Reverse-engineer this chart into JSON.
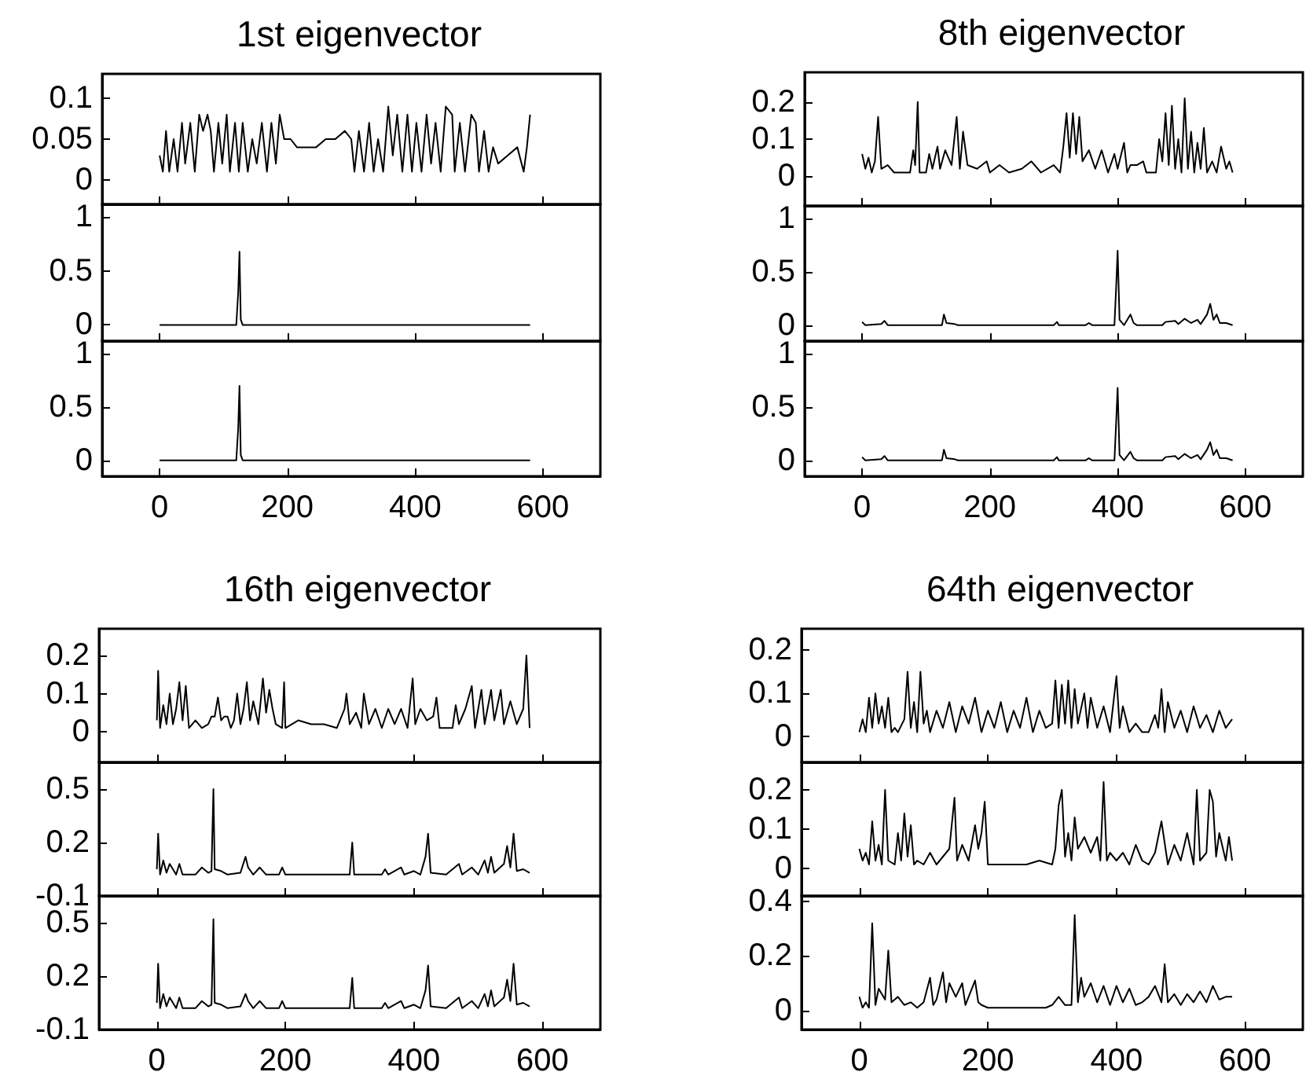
{
  "chart_data": [
    {
      "type": "line",
      "title": "1st eigenvector",
      "color": "#000000",
      "tick_labels": "y",
      "xlim": [
        -90,
        690
      ],
      "xticks": [
        0,
        200,
        400,
        600
      ],
      "ylim": [
        -0.03,
        0.13
      ],
      "yticks": [
        0,
        0.05,
        0.1
      ],
      "x": [
        0,
        5,
        10,
        15,
        22,
        28,
        35,
        40,
        48,
        55,
        62,
        68,
        75,
        80,
        85,
        92,
        98,
        105,
        110,
        118,
        124,
        130,
        138,
        145,
        152,
        160,
        168,
        175,
        182,
        188,
        195,
        205,
        215,
        230,
        245,
        260,
        275,
        290,
        300,
        305,
        312,
        320,
        328,
        335,
        342,
        350,
        358,
        365,
        372,
        380,
        388,
        395,
        402,
        410,
        418,
        425,
        432,
        440,
        448,
        458,
        462,
        470,
        478,
        488,
        495,
        500,
        508,
        515,
        522,
        530,
        545,
        560,
        570,
        575,
        580
      ],
      "values": [
        0.03,
        0.01,
        0.06,
        0.01,
        0.05,
        0.01,
        0.07,
        0.02,
        0.07,
        0.01,
        0.08,
        0.06,
        0.08,
        0.06,
        0.01,
        0.07,
        0.02,
        0.08,
        0.01,
        0.07,
        0.01,
        0.07,
        0.01,
        0.05,
        0.02,
        0.07,
        0.01,
        0.07,
        0.02,
        0.08,
        0.05,
        0.05,
        0.04,
        0.04,
        0.04,
        0.05,
        0.05,
        0.06,
        0.05,
        0.01,
        0.06,
        0.01,
        0.07,
        0.01,
        0.05,
        0.01,
        0.09,
        0.03,
        0.08,
        0.01,
        0.08,
        0.01,
        0.07,
        0.01,
        0.08,
        0.02,
        0.07,
        0.01,
        0.09,
        0.08,
        0.01,
        0.07,
        0.01,
        0.08,
        0.07,
        0.01,
        0.06,
        0.01,
        0.04,
        0.02,
        0.03,
        0.04,
        0.01,
        0.04,
        0.08
      ]
    },
    {
      "type": "line",
      "color": "#000000",
      "tick_labels": "y",
      "xlim": [
        -90,
        690
      ],
      "xticks": [
        0,
        200,
        400,
        600
      ],
      "ylim": [
        -0.15,
        1.12
      ],
      "yticks": [
        0,
        0.5,
        1
      ],
      "x": [
        0,
        120,
        123,
        125,
        127,
        130,
        580
      ],
      "values": [
        0,
        0,
        0.3,
        0.68,
        0.05,
        0,
        0
      ]
    },
    {
      "type": "line",
      "color": "#000000",
      "xlim": [
        -90,
        690
      ],
      "xticks": [
        0,
        200,
        400,
        600
      ],
      "ylim": [
        -0.15,
        1.12
      ],
      "yticks": [
        0,
        0.5,
        1
      ],
      "x": [
        0,
        120,
        123,
        125,
        127,
        130,
        580
      ],
      "values": [
        0,
        0,
        0.3,
        0.7,
        0.05,
        0,
        0
      ]
    },
    {
      "type": "line",
      "title": "8th eigenvector",
      "color": "#000000",
      "tick_labels": "y",
      "xlim": [
        -90,
        690
      ],
      "xticks": [
        0,
        200,
        400,
        600
      ],
      "ylim": [
        -0.08,
        0.28
      ],
      "yticks": [
        0,
        0.1,
        0.2
      ],
      "x": [
        0,
        5,
        10,
        15,
        20,
        25,
        30,
        40,
        50,
        65,
        75,
        80,
        83,
        87,
        90,
        100,
        105,
        110,
        118,
        122,
        130,
        140,
        148,
        153,
        158,
        165,
        180,
        195,
        200,
        215,
        230,
        250,
        265,
        280,
        300,
        310,
        315,
        320,
        325,
        330,
        335,
        340,
        345,
        355,
        365,
        375,
        385,
        395,
        400,
        410,
        415,
        420,
        430,
        440,
        445,
        460,
        465,
        470,
        475,
        480,
        485,
        490,
        495,
        500,
        505,
        510,
        515,
        520,
        525,
        530,
        535,
        540,
        548,
        555,
        562,
        570,
        575,
        580
      ],
      "values": [
        0.06,
        0.02,
        0.05,
        0.01,
        0.04,
        0.16,
        0.02,
        0.03,
        0.01,
        0.01,
        0.01,
        0.07,
        0.03,
        0.2,
        0.01,
        0.01,
        0.06,
        0.02,
        0.08,
        0.02,
        0.07,
        0.03,
        0.16,
        0.02,
        0.12,
        0.03,
        0.02,
        0.04,
        0.01,
        0.03,
        0.01,
        0.02,
        0.04,
        0.01,
        0.03,
        0.01,
        0.08,
        0.17,
        0.05,
        0.17,
        0.06,
        0.16,
        0.04,
        0.07,
        0.02,
        0.07,
        0.01,
        0.06,
        0.02,
        0.09,
        0.01,
        0.03,
        0.03,
        0.04,
        0.01,
        0.01,
        0.1,
        0.04,
        0.17,
        0.03,
        0.19,
        0.02,
        0.1,
        0.01,
        0.21,
        0.02,
        0.12,
        0.01,
        0.09,
        0.02,
        0.13,
        0.01,
        0.04,
        0.01,
        0.08,
        0.02,
        0.04,
        0.01
      ]
    },
    {
      "type": "line",
      "color": "#000000",
      "tick_labels": "y",
      "xlim": [
        -90,
        690
      ],
      "xticks": [
        0,
        200,
        400,
        600
      ],
      "ylim": [
        -0.15,
        1.12
      ],
      "yticks": [
        0,
        0.5,
        1
      ],
      "x": [
        0,
        5,
        30,
        35,
        40,
        125,
        128,
        132,
        145,
        150,
        300,
        305,
        308,
        350,
        355,
        360,
        395,
        398,
        400,
        403,
        410,
        420,
        425,
        430,
        470,
        475,
        490,
        495,
        505,
        515,
        525,
        530,
        540,
        545,
        550,
        555,
        560,
        570,
        580
      ],
      "values": [
        0.03,
        0,
        0.01,
        0.04,
        0,
        0,
        0.1,
        0.02,
        0.01,
        0,
        0,
        0.03,
        0,
        0,
        0.02,
        0,
        0,
        0.4,
        0.7,
        0.05,
        0,
        0.1,
        0.02,
        0,
        0,
        0.03,
        0.04,
        0.01,
        0.06,
        0.02,
        0.05,
        0.01,
        0.1,
        0.2,
        0.05,
        0.1,
        0.02,
        0.02,
        0
      ]
    },
    {
      "type": "line",
      "color": "#000000",
      "xlim": [
        -90,
        690
      ],
      "xticks": [
        0,
        200,
        400,
        600
      ],
      "ylim": [
        -0.15,
        1.12
      ],
      "yticks": [
        0,
        0.5,
        1
      ],
      "x": [
        0,
        5,
        30,
        35,
        40,
        125,
        128,
        132,
        145,
        150,
        300,
        305,
        308,
        350,
        355,
        360,
        395,
        398,
        400,
        403,
        410,
        420,
        425,
        430,
        470,
        475,
        490,
        495,
        505,
        515,
        525,
        530,
        540,
        545,
        550,
        555,
        560,
        570,
        580
      ],
      "values": [
        0.03,
        0,
        0.01,
        0.04,
        0,
        0,
        0.1,
        0.02,
        0.01,
        0,
        0,
        0.03,
        0,
        0,
        0.02,
        0,
        0,
        0.4,
        0.68,
        0.05,
        0,
        0.08,
        0.02,
        0,
        0,
        0.03,
        0.04,
        0.01,
        0.06,
        0.02,
        0.05,
        0.01,
        0.1,
        0.17,
        0.05,
        0.1,
        0.02,
        0.02,
        0
      ]
    },
    {
      "type": "line",
      "title": "16th eigenvector",
      "color": "#000000",
      "tick_labels": "y",
      "xlim": [
        -90,
        690
      ],
      "xticks": [
        0,
        200,
        400,
        600
      ],
      "ylim": [
        -0.08,
        0.27
      ],
      "yticks": [
        0,
        0.1,
        0.2
      ],
      "x": [
        0,
        2,
        5,
        10,
        15,
        20,
        25,
        30,
        35,
        40,
        45,
        50,
        60,
        70,
        80,
        85,
        90,
        95,
        100,
        105,
        110,
        115,
        120,
        125,
        130,
        135,
        140,
        145,
        150,
        158,
        165,
        170,
        175,
        180,
        185,
        195,
        198,
        200,
        220,
        240,
        260,
        280,
        292,
        295,
        300,
        310,
        318,
        322,
        330,
        340,
        350,
        360,
        370,
        380,
        390,
        398,
        402,
        410,
        420,
        430,
        435,
        440,
        460,
        465,
        470,
        480,
        490,
        495,
        505,
        510,
        520,
        525,
        535,
        540,
        550,
        560,
        570,
        575,
        580
      ],
      "values": [
        0.03,
        0.16,
        0.01,
        0.07,
        0.02,
        0.1,
        0.02,
        0.06,
        0.13,
        0.03,
        0.12,
        0.01,
        0.03,
        0.01,
        0.02,
        0.04,
        0.04,
        0.09,
        0.03,
        0.04,
        0.04,
        0.01,
        0.03,
        0.1,
        0.02,
        0.06,
        0.13,
        0.03,
        0.08,
        0.02,
        0.14,
        0.05,
        0.11,
        0.06,
        0.02,
        0.01,
        0.13,
        0.01,
        0.03,
        0.02,
        0.02,
        0.01,
        0.06,
        0.1,
        0.02,
        0.05,
        0.01,
        0.1,
        0.02,
        0.06,
        0.01,
        0.06,
        0.02,
        0.06,
        0.01,
        0.14,
        0.02,
        0.06,
        0.03,
        0.04,
        0.09,
        0.01,
        0.01,
        0.07,
        0.02,
        0.06,
        0.12,
        0.01,
        0.11,
        0.02,
        0.11,
        0.03,
        0.11,
        0.02,
        0.08,
        0.02,
        0.06,
        0.2,
        0.01
      ]
    },
    {
      "type": "line",
      "color": "#000000",
      "tick_labels": "y",
      "xlim": [
        -90,
        690
      ],
      "xticks": [
        0,
        200,
        400,
        600
      ],
      "ylim": [
        -0.1,
        0.65
      ],
      "yticks": [
        -0.1,
        0.2,
        0.5
      ],
      "x": [
        0,
        2,
        5,
        10,
        15,
        20,
        30,
        35,
        40,
        50,
        60,
        70,
        80,
        85,
        88,
        90,
        100,
        110,
        130,
        138,
        142,
        150,
        160,
        170,
        190,
        195,
        200,
        250,
        300,
        304,
        307,
        350,
        355,
        360,
        380,
        385,
        400,
        410,
        418,
        422,
        426,
        450,
        470,
        475,
        490,
        500,
        510,
        515,
        520,
        525,
        540,
        545,
        550,
        555,
        560,
        570,
        580
      ],
      "values": [
        0.05,
        0.25,
        0.02,
        0.1,
        0.03,
        0.08,
        0.02,
        0.08,
        0.02,
        0.02,
        0.02,
        0.06,
        0.03,
        0.04,
        0.5,
        0.05,
        0.04,
        0.02,
        0.03,
        0.12,
        0.06,
        0.02,
        0.06,
        0.02,
        0.02,
        0.06,
        0.02,
        0.02,
        0.02,
        0.2,
        0.02,
        0.02,
        0.05,
        0.02,
        0.06,
        0.02,
        0.04,
        0.02,
        0.12,
        0.25,
        0.03,
        0.02,
        0.08,
        0.02,
        0.06,
        0.02,
        0.1,
        0.03,
        0.12,
        0.03,
        0.08,
        0.18,
        0.06,
        0.25,
        0.04,
        0.05,
        0.03
      ]
    },
    {
      "type": "line",
      "color": "#000000",
      "xlim": [
        -90,
        690
      ],
      "xticks": [
        0,
        200,
        400,
        600
      ],
      "ylim": [
        -0.1,
        0.65
      ],
      "yticks": [
        -0.1,
        0.2,
        0.5
      ],
      "x": [
        0,
        2,
        5,
        10,
        15,
        20,
        30,
        35,
        40,
        50,
        60,
        70,
        80,
        85,
        88,
        90,
        100,
        110,
        130,
        138,
        142,
        150,
        160,
        170,
        190,
        195,
        200,
        250,
        300,
        304,
        307,
        350,
        355,
        360,
        380,
        385,
        400,
        410,
        418,
        422,
        426,
        450,
        470,
        475,
        490,
        500,
        510,
        515,
        520,
        525,
        540,
        545,
        550,
        555,
        560,
        570,
        580
      ],
      "values": [
        0.05,
        0.27,
        0.02,
        0.1,
        0.03,
        0.08,
        0.02,
        0.08,
        0.02,
        0.02,
        0.02,
        0.06,
        0.03,
        0.04,
        0.52,
        0.05,
        0.04,
        0.02,
        0.03,
        0.1,
        0.06,
        0.02,
        0.06,
        0.02,
        0.02,
        0.06,
        0.02,
        0.02,
        0.02,
        0.19,
        0.02,
        0.02,
        0.05,
        0.02,
        0.06,
        0.02,
        0.04,
        0.02,
        0.12,
        0.26,
        0.03,
        0.02,
        0.08,
        0.02,
        0.06,
        0.02,
        0.1,
        0.03,
        0.12,
        0.03,
        0.08,
        0.18,
        0.06,
        0.27,
        0.04,
        0.05,
        0.03
      ]
    },
    {
      "type": "line",
      "title": "64th eigenvector",
      "color": "#000000",
      "tick_labels": "y",
      "xlim": [
        -90,
        690
      ],
      "xticks": [
        0,
        200,
        400,
        600
      ],
      "ylim": [
        -0.06,
        0.25
      ],
      "yticks": [
        0,
        0.1,
        0.2
      ],
      "x": [
        0,
        5,
        10,
        15,
        20,
        25,
        30,
        35,
        40,
        45,
        50,
        55,
        60,
        70,
        75,
        80,
        85,
        90,
        95,
        100,
        105,
        110,
        120,
        130,
        140,
        150,
        160,
        170,
        180,
        190,
        200,
        210,
        220,
        230,
        240,
        250,
        260,
        270,
        280,
        290,
        300,
        305,
        310,
        315,
        320,
        325,
        330,
        335,
        340,
        350,
        355,
        360,
        370,
        380,
        390,
        400,
        405,
        410,
        420,
        430,
        440,
        450,
        460,
        465,
        470,
        475,
        480,
        490,
        500,
        510,
        520,
        530,
        540,
        550,
        560,
        570,
        580
      ],
      "values": [
        0.01,
        0.04,
        0.01,
        0.09,
        0.02,
        0.1,
        0.03,
        0.07,
        0.02,
        0.09,
        0.01,
        0.02,
        0.01,
        0.04,
        0.15,
        0.02,
        0.08,
        0.01,
        0.15,
        0.03,
        0.06,
        0.01,
        0.06,
        0.02,
        0.08,
        0.01,
        0.07,
        0.03,
        0.09,
        0.01,
        0.06,
        0.02,
        0.08,
        0.01,
        0.06,
        0.02,
        0.09,
        0.01,
        0.06,
        0.02,
        0.03,
        0.13,
        0.02,
        0.12,
        0.03,
        0.13,
        0.02,
        0.11,
        0.03,
        0.1,
        0.02,
        0.09,
        0.02,
        0.07,
        0.01,
        0.14,
        0.02,
        0.07,
        0.01,
        0.03,
        0.01,
        0.01,
        0.05,
        0.02,
        0.11,
        0.01,
        0.08,
        0.02,
        0.06,
        0.01,
        0.07,
        0.02,
        0.05,
        0.01,
        0.06,
        0.02,
        0.04
      ]
    },
    {
      "type": "line",
      "color": "#000000",
      "tick_labels": "y",
      "xlim": [
        -90,
        690
      ],
      "xticks": [
        0,
        200,
        400,
        600
      ],
      "ylim": [
        -0.07,
        0.27
      ],
      "yticks": [
        0,
        0.1,
        0.2
      ],
      "x": [
        0,
        5,
        10,
        15,
        20,
        25,
        30,
        35,
        40,
        45,
        55,
        60,
        65,
        70,
        75,
        80,
        85,
        90,
        100,
        110,
        120,
        130,
        140,
        148,
        152,
        160,
        170,
        180,
        185,
        190,
        195,
        200,
        220,
        240,
        260,
        280,
        300,
        305,
        310,
        315,
        320,
        325,
        330,
        335,
        340,
        350,
        360,
        370,
        375,
        380,
        385,
        390,
        400,
        410,
        420,
        430,
        440,
        450,
        460,
        470,
        480,
        490,
        500,
        510,
        520,
        525,
        530,
        540,
        545,
        550,
        555,
        560,
        570,
        575,
        580
      ],
      "values": [
        0.05,
        0.02,
        0.04,
        0.01,
        0.12,
        0.02,
        0.06,
        0.01,
        0.2,
        0.02,
        0.01,
        0.09,
        0.02,
        0.14,
        0.03,
        0.11,
        0.01,
        0.02,
        0.01,
        0.04,
        0.01,
        0.03,
        0.05,
        0.18,
        0.02,
        0.06,
        0.02,
        0.11,
        0.05,
        0.09,
        0.17,
        0.01,
        0.01,
        0.01,
        0.01,
        0.02,
        0.01,
        0.05,
        0.16,
        0.2,
        0.03,
        0.09,
        0.02,
        0.13,
        0.05,
        0.08,
        0.04,
        0.08,
        0.02,
        0.22,
        0.02,
        0.04,
        0.02,
        0.04,
        0.01,
        0.06,
        0.02,
        0.01,
        0.04,
        0.12,
        0.01,
        0.06,
        0.02,
        0.09,
        0.01,
        0.2,
        0.02,
        0.04,
        0.2,
        0.17,
        0.03,
        0.09,
        0.02,
        0.08,
        0.02
      ]
    },
    {
      "type": "line",
      "color": "#000000",
      "xlim": [
        -90,
        690
      ],
      "xticks": [
        0,
        200,
        400,
        600
      ],
      "ylim": [
        -0.07,
        0.42
      ],
      "yticks": [
        0,
        0.2,
        0.4
      ],
      "x": [
        0,
        5,
        10,
        15,
        20,
        25,
        30,
        40,
        45,
        50,
        60,
        70,
        80,
        90,
        100,
        110,
        115,
        120,
        130,
        135,
        140,
        150,
        160,
        165,
        170,
        180,
        185,
        190,
        200,
        230,
        260,
        290,
        300,
        310,
        320,
        330,
        335,
        340,
        345,
        350,
        360,
        370,
        380,
        390,
        400,
        410,
        420,
        430,
        440,
        450,
        460,
        470,
        475,
        480,
        490,
        500,
        510,
        520,
        530,
        540,
        550,
        560,
        570,
        580
      ],
      "values": [
        0.05,
        0.01,
        0.03,
        0.01,
        0.32,
        0.02,
        0.08,
        0.04,
        0.22,
        0.03,
        0.05,
        0.02,
        0.03,
        0.01,
        0.03,
        0.12,
        0.02,
        0.04,
        0.14,
        0.03,
        0.1,
        0.05,
        0.1,
        0.02,
        0.05,
        0.11,
        0.03,
        0.02,
        0.01,
        0.01,
        0.01,
        0.01,
        0.02,
        0.05,
        0.02,
        0.02,
        0.35,
        0.03,
        0.12,
        0.05,
        0.1,
        0.03,
        0.09,
        0.02,
        0.09,
        0.03,
        0.08,
        0.02,
        0.03,
        0.05,
        0.09,
        0.03,
        0.17,
        0.03,
        0.06,
        0.02,
        0.06,
        0.03,
        0.07,
        0.03,
        0.09,
        0.04,
        0.05,
        0.05
      ]
    }
  ]
}
